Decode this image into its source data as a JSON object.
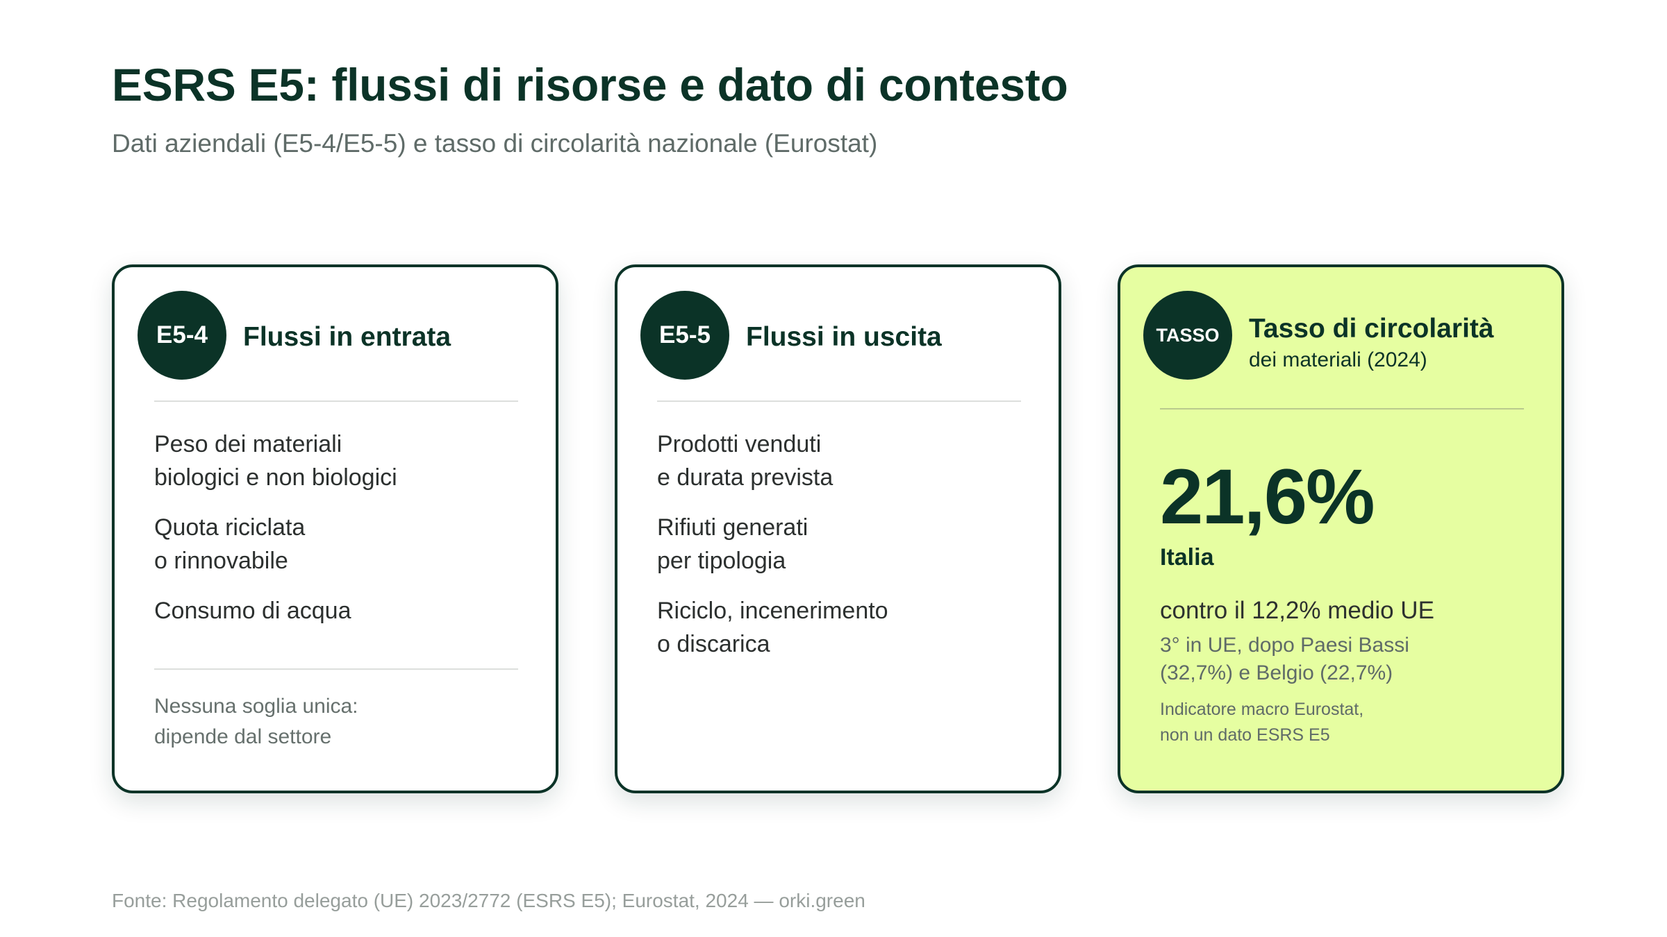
{
  "header": {
    "title": "ESRS E5: flussi di risorse e dato di contesto",
    "subtitle": "Dati aziendali (E5-4/E5-5) e tasso di circolarità nazionale (Eurostat)"
  },
  "cards": {
    "inflows": {
      "badge": "E5-4",
      "title": "Flussi in entrata",
      "items": [
        {
          "lines": [
            "Peso dei materiali",
            "biologici e non biologici"
          ]
        },
        {
          "lines": [
            "Quota riciclata",
            "o rinnovabile"
          ]
        },
        {
          "lines": [
            "Consumo di acqua"
          ]
        }
      ],
      "note_lines": [
        "Nessuna soglia unica:",
        "dipende dal settore"
      ]
    },
    "outflows": {
      "badge": "E5-5",
      "title": "Flussi in uscita",
      "items": [
        {
          "lines": [
            "Prodotti venduti",
            "e durata prevista"
          ]
        },
        {
          "lines": [
            "Rifiuti generati",
            "per tipologia"
          ]
        },
        {
          "lines": [
            "Riciclo, incenerimento",
            "o discarica"
          ]
        }
      ]
    },
    "circularity": {
      "badge": "TASSO",
      "title": "Tasso di circolarità",
      "subtitle": "dei materiali (2024)",
      "value": "21,6%",
      "country": "Italia",
      "comparison": "contro il 12,2% medio UE",
      "rank_lines": [
        "3° in UE, dopo Paesi Bassi",
        "(32,7%) e Belgio (22,7%)"
      ],
      "disclaimer_lines": [
        "Indicatore macro Eurostat,",
        "non un dato ESRS E5"
      ]
    }
  },
  "footer": {
    "source": "Fonte: Regolamento delegato (UE) 2023/2772 (ESRS E5); Eurostat, 2024 — orki.green"
  },
  "colors": {
    "primary": "#0b3327",
    "highlight_card": "#e6fea1",
    "muted_text": "#5f6b68",
    "source_text": "#979e9b"
  }
}
